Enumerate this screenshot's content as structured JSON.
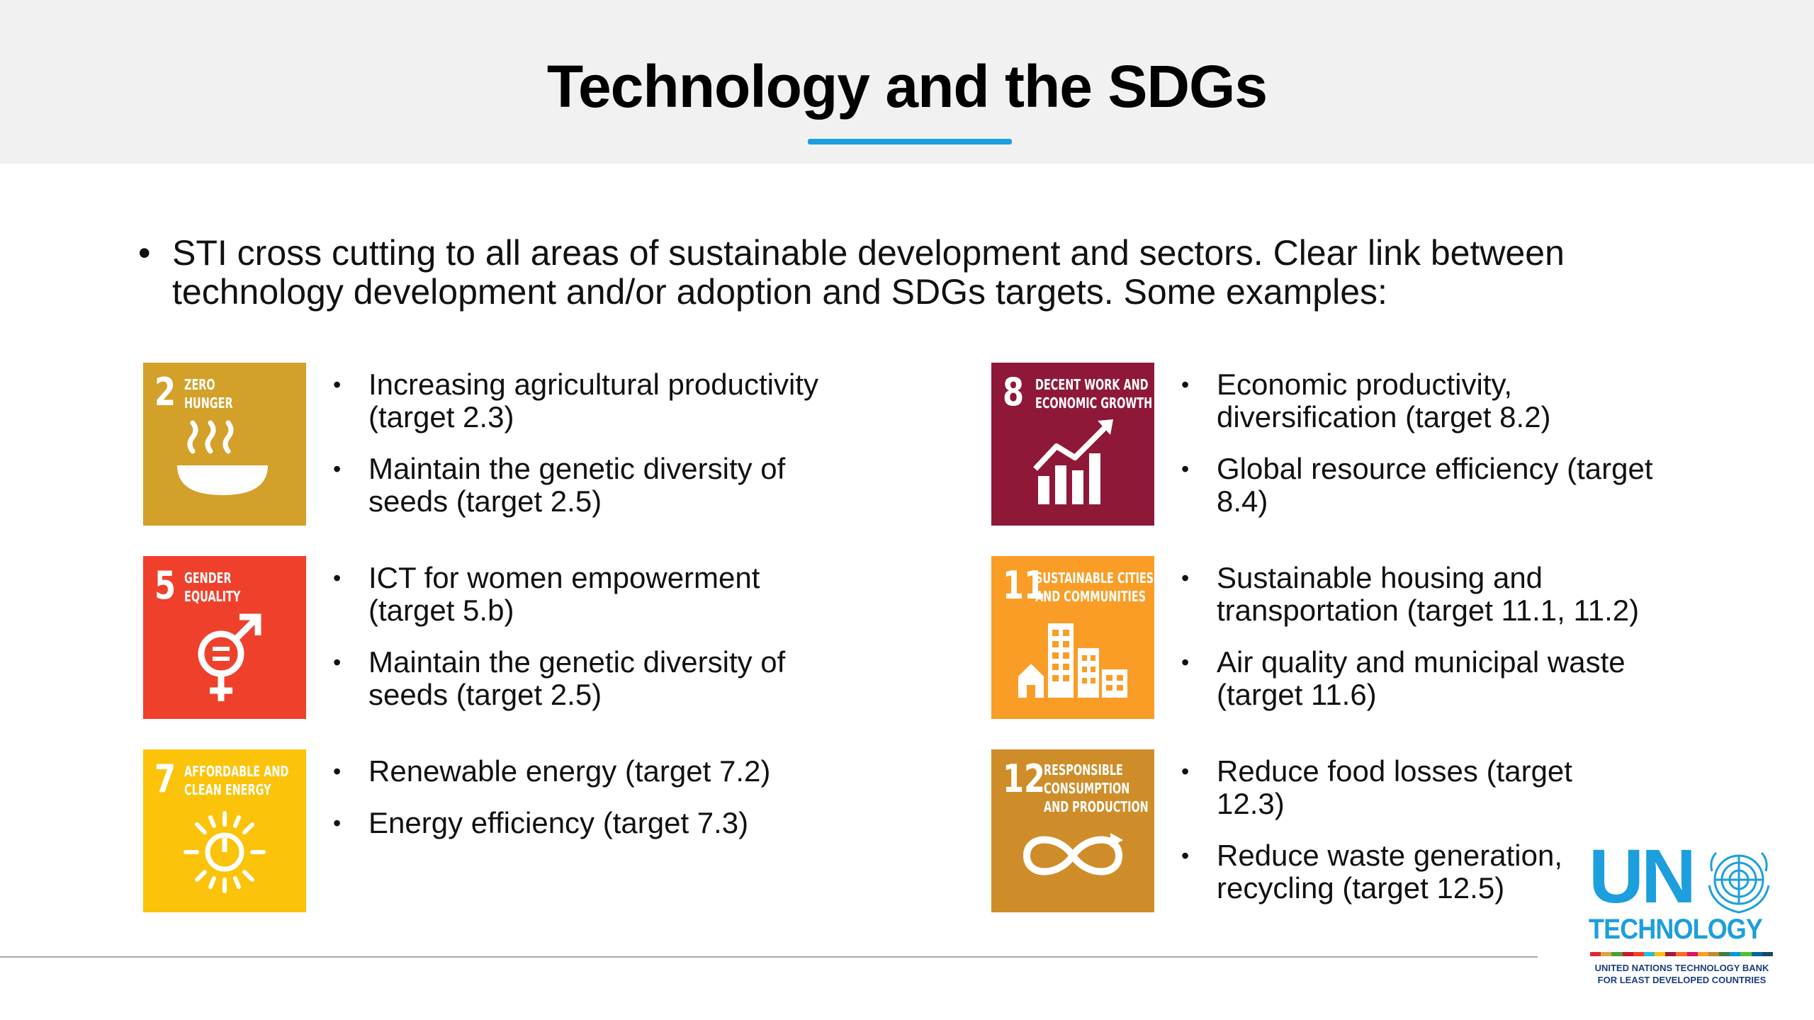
{
  "title": "Technology and the SDGs",
  "intro": {
    "bullet": "•",
    "text": "STI cross cutting to all areas of sustainable development and sectors. Clear link between technology development and/or adoption and SDGs targets. Some examples:"
  },
  "goals": [
    {
      "number": "2",
      "label_line1": "Zero",
      "label_line2": "Hunger",
      "icon": "bowl-icon",
      "color": "#D3A029",
      "bullets": [
        "Increasing agricultural productivity (target 2.3)",
        "Maintain the genetic diversity of seeds (target 2.5)"
      ]
    },
    {
      "number": "5",
      "label_line1": "Gender",
      "label_line2": "Equality",
      "icon": "gender-equality-icon",
      "color": "#EF402B",
      "bullets": [
        "ICT for women empowerment (target 5.b)",
        "Maintain the genetic diversity of seeds (target 2.5)"
      ]
    },
    {
      "number": "7",
      "label_line1": "Affordable and",
      "label_line2": "clean energy",
      "icon": "sun-power-icon",
      "color": "#FBC30A",
      "bullets": [
        "Renewable energy (target 7.2)",
        "Energy efficiency (target 7.3)"
      ]
    },
    {
      "number": "8",
      "label_line1": "Decent work and",
      "label_line2": "economic growth",
      "icon": "growth-chart-icon",
      "color": "#8F1838",
      "bullets": [
        "Economic productivity, diversification (target 8.2)",
        "Global resource efficiency (target 8.4)"
      ]
    },
    {
      "number": "11",
      "label_line1": "Sustainable cities",
      "label_line2": "and communities",
      "icon": "city-buildings-icon",
      "color": "#F99D26",
      "bullets": [
        "Sustainable housing and transportation (target 11.1, 11.2)",
        "Air quality and municipal waste (target 11.6)"
      ]
    },
    {
      "number": "12",
      "label_line1": "Responsible",
      "label_line2": "consumption",
      "label_line3": "and production",
      "icon": "infinity-loop-icon",
      "color": "#CF8D2A",
      "bullets": [
        "Reduce food losses (target 12.3)",
        "Reduce waste generation, recycling (target 12.5)"
      ]
    }
  ],
  "logo": {
    "un": "UN",
    "technology": "TECHNOLOGY",
    "sub_line1": "UNITED NATIONS TECHNOLOGY BANK",
    "sub_line2": "FOR LEAST DEVELOPED COUNTRIES",
    "emblem": "un-emblem-icon",
    "brand_color": "#1C9FDC"
  },
  "bullet_char": "•"
}
